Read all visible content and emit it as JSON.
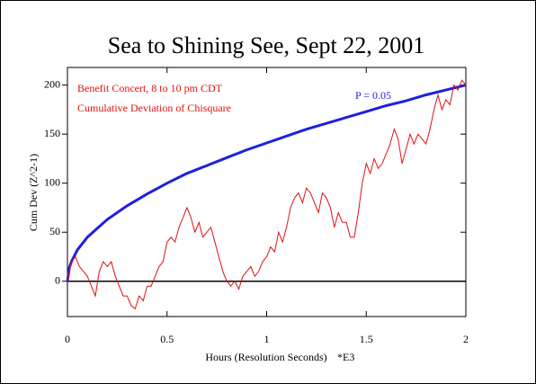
{
  "chart_data": {
    "type": "line",
    "title": "Sea to Shining See, Sept 22, 2001",
    "annotations": [
      "Benefit Concert, 8 to 10 pm CDT",
      "Cumulative Deviation of Chisquare"
    ],
    "xlabel": "Hours (Resolution Seconds)",
    "xlabel_suffix": "*E3",
    "ylabel": "Cum Dev (Z^2-1)",
    "xlim": [
      0,
      2
    ],
    "xticks": [
      0,
      0.5,
      1,
      1.5,
      2
    ],
    "ylim": [
      -36,
      218
    ],
    "yticks": [
      0,
      50,
      100,
      150,
      200
    ],
    "reference_line": 0,
    "series": [
      {
        "name": "P = 0.05",
        "color": "#1f1fe0",
        "x": [
          0,
          0.01,
          0.02,
          0.05,
          0.1,
          0.2,
          0.3,
          0.4,
          0.5,
          0.6,
          0.7,
          0.8,
          0.9,
          1.0,
          1.1,
          1.2,
          1.3,
          1.4,
          1.5,
          1.6,
          1.7,
          1.8,
          1.9,
          2.0
        ],
        "values": [
          0,
          14,
          20,
          32,
          45,
          63,
          77,
          89,
          100,
          110,
          118,
          126,
          134,
          141,
          148,
          155,
          161,
          167,
          173,
          179,
          184,
          190,
          195,
          200
        ]
      },
      {
        "color": "#e01010",
        "x": [
          0,
          0.02,
          0.04,
          0.06,
          0.08,
          0.1,
          0.12,
          0.14,
          0.16,
          0.18,
          0.2,
          0.22,
          0.24,
          0.26,
          0.28,
          0.3,
          0.32,
          0.34,
          0.36,
          0.38,
          0.4,
          0.42,
          0.44,
          0.46,
          0.48,
          0.5,
          0.52,
          0.54,
          0.56,
          0.58,
          0.6,
          0.62,
          0.64,
          0.66,
          0.68,
          0.7,
          0.72,
          0.74,
          0.76,
          0.78,
          0.8,
          0.82,
          0.84,
          0.86,
          0.88,
          0.9,
          0.92,
          0.94,
          0.96,
          0.98,
          1.0,
          1.02,
          1.04,
          1.06,
          1.08,
          1.1,
          1.12,
          1.14,
          1.16,
          1.18,
          1.2,
          1.22,
          1.24,
          1.26,
          1.28,
          1.3,
          1.32,
          1.34,
          1.36,
          1.38,
          1.4,
          1.42,
          1.44,
          1.46,
          1.48,
          1.5,
          1.52,
          1.54,
          1.56,
          1.58,
          1.6,
          1.62,
          1.64,
          1.66,
          1.68,
          1.7,
          1.72,
          1.74,
          1.76,
          1.78,
          1.8,
          1.82,
          1.84,
          1.86,
          1.88,
          1.9,
          1.92,
          1.94,
          1.96,
          1.98,
          2.0
        ],
        "values": [
          0,
          20,
          25,
          15,
          10,
          5,
          -5,
          -15,
          10,
          20,
          15,
          20,
          5,
          -5,
          -15,
          -15,
          -25,
          -28,
          -15,
          -20,
          -5,
          -5,
          5,
          15,
          20,
          40,
          45,
          40,
          55,
          65,
          75,
          65,
          50,
          60,
          45,
          50,
          55,
          40,
          25,
          10,
          0,
          -5,
          0,
          -8,
          5,
          10,
          15,
          5,
          10,
          20,
          25,
          35,
          30,
          50,
          40,
          55,
          75,
          85,
          90,
          80,
          95,
          90,
          80,
          70,
          90,
          85,
          75,
          55,
          70,
          60,
          60,
          45,
          45,
          70,
          100,
          120,
          110,
          125,
          115,
          120,
          130,
          140,
          155,
          145,
          120,
          135,
          150,
          140,
          150,
          145,
          140,
          155,
          175,
          190,
          175,
          185,
          180,
          200,
          195,
          205,
          200
        ]
      }
    ]
  }
}
